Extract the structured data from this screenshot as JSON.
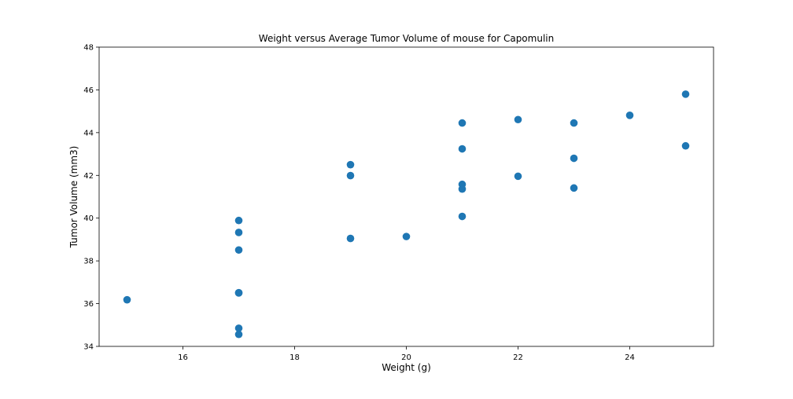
{
  "chart_data": {
    "type": "scatter",
    "title": "Weight versus Average Tumor Volume of mouse for Capomulin",
    "xlabel": "Weight (g)",
    "ylabel": "Tumor Volume (mm3)",
    "xlim": [
      14.5,
      25.5
    ],
    "ylim": [
      34,
      48
    ],
    "xticks": [
      16,
      18,
      20,
      22,
      24
    ],
    "xtick_labels": [
      "16",
      "18",
      "20",
      "22",
      "24"
    ],
    "yticks": [
      34,
      36,
      38,
      40,
      42,
      44,
      46,
      48
    ],
    "ytick_labels": [
      "34",
      "36",
      "38",
      "40",
      "42",
      "44",
      "46",
      "48"
    ],
    "grid": false,
    "legend": "none",
    "series": [
      {
        "color": "#1f77b4",
        "points": [
          {
            "x": 15,
            "y": 36.18
          },
          {
            "x": 17,
            "y": 39.89
          },
          {
            "x": 17,
            "y": 39.33
          },
          {
            "x": 17,
            "y": 38.51
          },
          {
            "x": 17,
            "y": 36.51
          },
          {
            "x": 17,
            "y": 36.5
          },
          {
            "x": 17,
            "y": 34.85
          },
          {
            "x": 17,
            "y": 34.56
          },
          {
            "x": 19,
            "y": 42.5
          },
          {
            "x": 19,
            "y": 41.99
          },
          {
            "x": 19,
            "y": 39.05
          },
          {
            "x": 20,
            "y": 39.14
          },
          {
            "x": 21,
            "y": 44.45
          },
          {
            "x": 21,
            "y": 43.24
          },
          {
            "x": 21,
            "y": 41.58
          },
          {
            "x": 21,
            "y": 41.36
          },
          {
            "x": 21,
            "y": 40.08
          },
          {
            "x": 22,
            "y": 44.61
          },
          {
            "x": 22,
            "y": 41.96
          },
          {
            "x": 23,
            "y": 44.45
          },
          {
            "x": 23,
            "y": 42.8
          },
          {
            "x": 23,
            "y": 41.41
          },
          {
            "x": 24,
            "y": 44.81
          },
          {
            "x": 25,
            "y": 45.8
          },
          {
            "x": 25,
            "y": 43.38
          }
        ]
      }
    ]
  }
}
